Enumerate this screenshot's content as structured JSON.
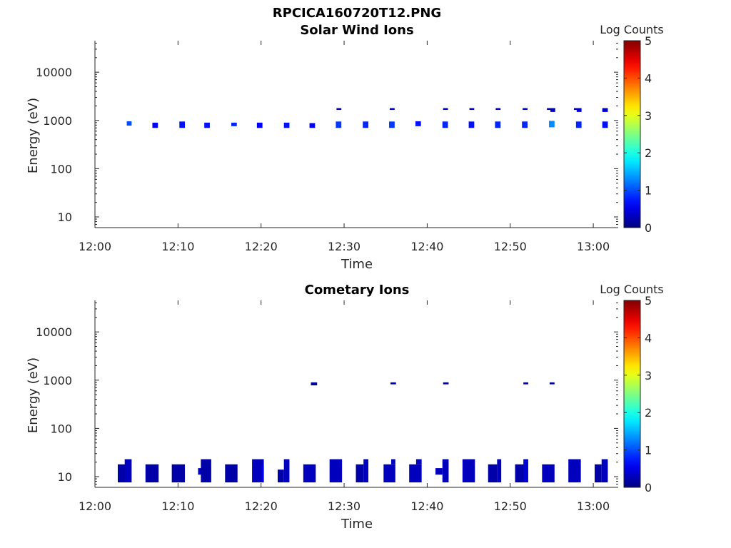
{
  "figure_title": "RPCICA160720T12.PNG",
  "colorbar": {
    "label": "Log Counts",
    "ticks": [
      "0",
      "1",
      "2",
      "3",
      "4",
      "5"
    ],
    "range": [
      0,
      5
    ],
    "colormap": "jet"
  },
  "chart_data": [
    {
      "type": "heatmap",
      "title": "Solar Wind Ions",
      "xlabel": "Time",
      "ylabel": "Energy (eV)",
      "yscale": "log",
      "xlim": [
        "12:00",
        "13:03"
      ],
      "ylim": [
        6,
        45000
      ],
      "xticks": [
        "12:00",
        "12:10",
        "12:20",
        "12:30",
        "12:40",
        "12:50",
        "13:00"
      ],
      "yticks": [
        "10",
        "100",
        "1000",
        "10000"
      ],
      "cells": [
        {
          "t": "12:03:50",
          "t2": "12:04:25",
          "e1": 780,
          "e2": 960,
          "v": 1.0
        },
        {
          "t": "12:06:55",
          "t2": "12:07:35",
          "e1": 700,
          "e2": 900,
          "v": 0.6
        },
        {
          "t": "12:10:10",
          "t2": "12:10:50",
          "e1": 700,
          "e2": 950,
          "v": 0.7
        },
        {
          "t": "12:13:10",
          "t2": "12:13:50",
          "e1": 700,
          "e2": 900,
          "v": 0.7
        },
        {
          "t": "12:16:25",
          "t2": "12:17:05",
          "e1": 760,
          "e2": 900,
          "v": 0.8
        },
        {
          "t": "12:19:30",
          "t2": "12:20:10",
          "e1": 700,
          "e2": 900,
          "v": 0.6
        },
        {
          "t": "12:22:45",
          "t2": "12:23:25",
          "e1": 700,
          "e2": 900,
          "v": 0.7
        },
        {
          "t": "12:25:50",
          "t2": "12:26:30",
          "e1": 700,
          "e2": 880,
          "v": 0.6
        },
        {
          "t": "12:29:00",
          "t2": "12:29:40",
          "e1": 700,
          "e2": 950,
          "v": 0.9
        },
        {
          "t": "12:29:05",
          "t2": "12:29:40",
          "e1": 1650,
          "e2": 1800,
          "v": 0.3
        },
        {
          "t": "12:32:15",
          "t2": "12:32:55",
          "e1": 700,
          "e2": 950,
          "v": 0.8
        },
        {
          "t": "12:35:25",
          "t2": "12:36:05",
          "e1": 700,
          "e2": 950,
          "v": 0.9
        },
        {
          "t": "12:35:30",
          "t2": "12:36:05",
          "e1": 1650,
          "e2": 1800,
          "v": 0.3
        },
        {
          "t": "12:38:35",
          "t2": "12:39:15",
          "e1": 760,
          "e2": 960,
          "v": 0.7
        },
        {
          "t": "12:41:50",
          "t2": "12:42:30",
          "e1": 700,
          "e2": 950,
          "v": 0.8
        },
        {
          "t": "12:41:55",
          "t2": "12:42:30",
          "e1": 1650,
          "e2": 1800,
          "v": 0.3
        },
        {
          "t": "12:45:00",
          "t2": "12:45:40",
          "e1": 700,
          "e2": 950,
          "v": 0.7
        },
        {
          "t": "12:45:05",
          "t2": "12:45:40",
          "e1": 1650,
          "e2": 1800,
          "v": 0.3
        },
        {
          "t": "12:48:10",
          "t2": "12:48:50",
          "e1": 700,
          "e2": 950,
          "v": 0.8
        },
        {
          "t": "12:48:15",
          "t2": "12:48:50",
          "e1": 1650,
          "e2": 1800,
          "v": 0.3
        },
        {
          "t": "12:51:25",
          "t2": "12:52:05",
          "e1": 700,
          "e2": 950,
          "v": 0.8
        },
        {
          "t": "12:51:30",
          "t2": "12:52:05",
          "e1": 1650,
          "e2": 1800,
          "v": 0.3
        },
        {
          "t": "12:54:25",
          "t2": "12:54:55",
          "e1": 1650,
          "e2": 1800,
          "v": 0.2
        },
        {
          "t": "12:54:40",
          "t2": "12:55:20",
          "e1": 720,
          "e2": 980,
          "v": 1.3
        },
        {
          "t": "12:54:50",
          "t2": "12:55:25",
          "e1": 1500,
          "e2": 1800,
          "v": 0.3
        },
        {
          "t": "12:57:40",
          "t2": "12:58:20",
          "e1": 1650,
          "e2": 1800,
          "v": 0.3
        },
        {
          "t": "12:57:55",
          "t2": "12:58:35",
          "e1": 700,
          "e2": 950,
          "v": 0.8
        },
        {
          "t": "12:58:00",
          "t2": "12:58:35",
          "e1": 1500,
          "e2": 1800,
          "v": 0.4
        },
        {
          "t": "13:01:05",
          "t2": "13:01:45",
          "e1": 700,
          "e2": 950,
          "v": 0.7
        },
        {
          "t": "13:01:05",
          "t2": "13:01:45",
          "e1": 1500,
          "e2": 1800,
          "v": 0.3
        }
      ]
    },
    {
      "type": "heatmap",
      "title": "Cometary Ions",
      "xlabel": "Time",
      "ylabel": "Energy (eV)",
      "yscale": "log",
      "xlim": [
        "12:00",
        "13:03"
      ],
      "ylim": [
        6,
        45000
      ],
      "xticks": [
        "12:00",
        "12:10",
        "12:20",
        "12:30",
        "12:40",
        "12:50",
        "13:00"
      ],
      "yticks": [
        "10",
        "100",
        "1000",
        "10000"
      ],
      "cells": [
        {
          "t": "12:02:45",
          "t2": "12:03:40",
          "e1": 7.6,
          "e2": 18,
          "v": 0.2
        },
        {
          "t": "12:03:35",
          "t2": "12:04:25",
          "e1": 7.6,
          "e2": 23,
          "v": 0.3
        },
        {
          "t": "12:06:05",
          "t2": "12:07:40",
          "e1": 7.6,
          "e2": 18,
          "v": 0.2
        },
        {
          "t": "12:09:15",
          "t2": "12:10:50",
          "e1": 7.6,
          "e2": 18,
          "v": 0.2
        },
        {
          "t": "12:12:25",
          "t2": "12:12:50",
          "e1": 11,
          "e2": 15,
          "v": 0.3
        },
        {
          "t": "12:12:45",
          "t2": "12:14:00",
          "e1": 7.6,
          "e2": 23,
          "v": 0.2
        },
        {
          "t": "12:15:40",
          "t2": "12:17:10",
          "e1": 7.6,
          "e2": 18,
          "v": 0.2
        },
        {
          "t": "12:18:55",
          "t2": "12:20:20",
          "e1": 7.6,
          "e2": 23,
          "v": 0.3
        },
        {
          "t": "12:20:05",
          "t2": "12:20:20",
          "e1": 7.6,
          "e2": 18,
          "v": 0.6
        },
        {
          "t": "12:22:00",
          "t2": "12:22:45",
          "e1": 7.6,
          "e2": 14,
          "v": 0.2
        },
        {
          "t": "12:22:45",
          "t2": "12:23:25",
          "e1": 7.6,
          "e2": 23,
          "v": 0.3
        },
        {
          "t": "12:25:05",
          "t2": "12:26:35",
          "e1": 7.6,
          "e2": 18,
          "v": 0.3
        },
        {
          "t": "12:26:00",
          "t2": "12:26:45",
          "e1": 780,
          "e2": 900,
          "v": 0.1
        },
        {
          "t": "12:28:15",
          "t2": "12:29:45",
          "e1": 7.6,
          "e2": 23,
          "v": 0.3
        },
        {
          "t": "12:31:25",
          "t2": "12:32:20",
          "e1": 7.6,
          "e2": 18,
          "v": 0.2
        },
        {
          "t": "12:32:20",
          "t2": "12:32:55",
          "e1": 7.6,
          "e2": 23,
          "v": 0.3
        },
        {
          "t": "12:34:45",
          "t2": "12:36:10",
          "e1": 7.6,
          "e2": 18,
          "v": 0.3
        },
        {
          "t": "12:35:40",
          "t2": "12:36:10",
          "e1": 18,
          "e2": 23,
          "v": 0.3
        },
        {
          "t": "12:35:35",
          "t2": "12:36:15",
          "e1": 820,
          "e2": 900,
          "v": 0.1
        },
        {
          "t": "12:37:50",
          "t2": "12:39:20",
          "e1": 7.6,
          "e2": 18,
          "v": 0.3
        },
        {
          "t": "12:38:40",
          "t2": "12:39:20",
          "e1": 18,
          "e2": 23,
          "v": 0.3
        },
        {
          "t": "12:41:00",
          "t2": "12:41:50",
          "e1": 11,
          "e2": 15,
          "v": 0.3
        },
        {
          "t": "12:41:50",
          "t2": "12:42:35",
          "e1": 7.6,
          "e2": 23,
          "v": 0.3
        },
        {
          "t": "12:41:55",
          "t2": "12:42:35",
          "e1": 820,
          "e2": 900,
          "v": 0.1
        },
        {
          "t": "12:44:15",
          "t2": "12:45:45",
          "e1": 7.6,
          "e2": 23,
          "v": 0.3
        },
        {
          "t": "12:47:20",
          "t2": "12:48:25",
          "e1": 7.6,
          "e2": 18,
          "v": 0.2
        },
        {
          "t": "12:48:25",
          "t2": "12:48:55",
          "e1": 7.6,
          "e2": 23,
          "v": 0.3
        },
        {
          "t": "12:50:35",
          "t2": "12:51:40",
          "e1": 7.6,
          "e2": 18,
          "v": 0.2
        },
        {
          "t": "12:51:35",
          "t2": "12:52:10",
          "e1": 7.6,
          "e2": 23,
          "v": 0.4
        },
        {
          "t": "12:51:35",
          "t2": "12:52:10",
          "e1": 820,
          "e2": 900,
          "v": 0.1
        },
        {
          "t": "12:53:50",
          "t2": "12:55:20",
          "e1": 7.6,
          "e2": 18,
          "v": 0.3
        },
        {
          "t": "12:54:45",
          "t2": "12:55:20",
          "e1": 820,
          "e2": 900,
          "v": 0.1
        },
        {
          "t": "12:57:00",
          "t2": "12:58:30",
          "e1": 7.6,
          "e2": 23,
          "v": 0.3
        },
        {
          "t": "13:00:10",
          "t2": "13:01:00",
          "e1": 7.6,
          "e2": 18,
          "v": 0.2
        },
        {
          "t": "13:01:00",
          "t2": "13:01:45",
          "e1": 7.6,
          "e2": 23,
          "v": 0.3
        }
      ]
    }
  ]
}
